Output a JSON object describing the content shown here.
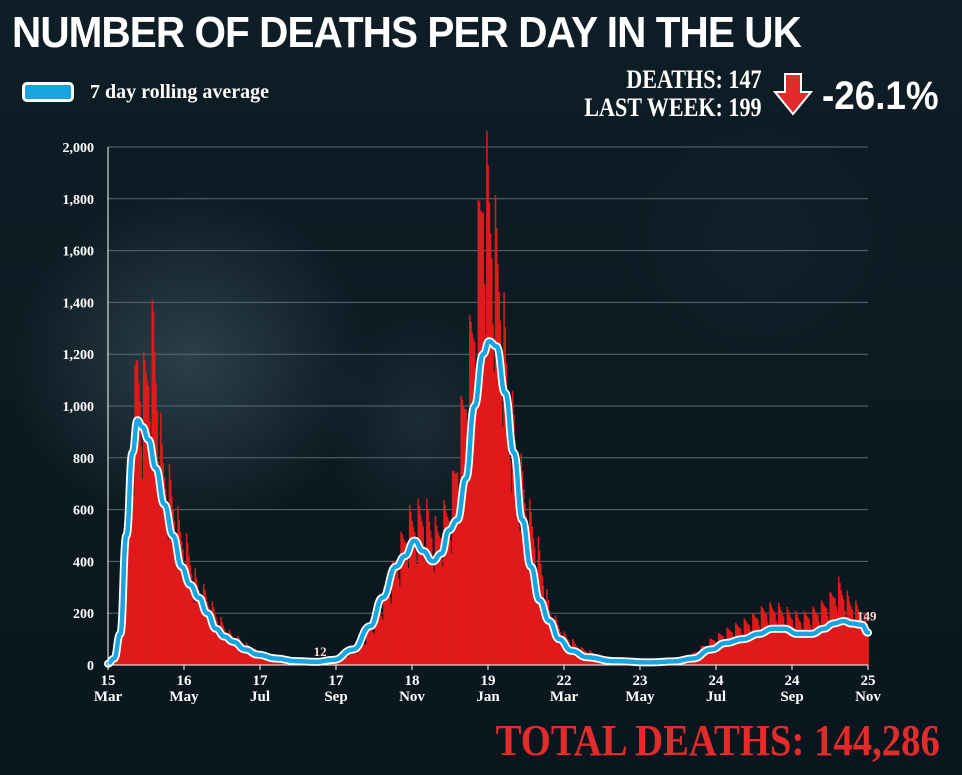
{
  "header": {
    "title": "NUMBER OF DEATHS PER DAY IN THE UK"
  },
  "legend": {
    "label": "7 day rolling average",
    "color": "#19a6e0"
  },
  "stats": {
    "deaths_label": "DEATHS: 147",
    "last_week_label": "LAST WEEK: 199",
    "change": "-26.1%",
    "arrow_icon": "down-arrow-icon",
    "arrow_color": "#e32b2b"
  },
  "footer": {
    "total": "TOTAL DEATHS: 144,286"
  },
  "chart_data": {
    "type": "bar",
    "title": "NUMBER OF DEATHS PER DAY IN THE UK",
    "ylim": [
      0,
      2000
    ],
    "yticks": [
      "0",
      "200",
      "400",
      "600",
      "800",
      "1,000",
      "1,200",
      "1,400",
      "1,600",
      "1,800",
      "2,000"
    ],
    "grid": true,
    "legend_position": "top-left",
    "x_range": [
      "2020-03-15",
      "2021-11-25"
    ],
    "xticks": [
      {
        "day": "15",
        "month": "Mar"
      },
      {
        "day": "16",
        "month": "May"
      },
      {
        "day": "17",
        "month": "Jul"
      },
      {
        "day": "17",
        "month": "Sep"
      },
      {
        "day": "18",
        "month": "Nov"
      },
      {
        "day": "19",
        "month": "Jan"
      },
      {
        "day": "22",
        "month": "Mar"
      },
      {
        "day": "23",
        "month": "May"
      },
      {
        "day": "24",
        "month": "Jul"
      },
      {
        "day": "24",
        "month": "Sep"
      },
      {
        "day": "25",
        "month": "Nov"
      }
    ],
    "colors": {
      "bars": "#e01a1a",
      "line": "#19a6e0",
      "line_outline": "#ffffff",
      "grid": "#5a6a72"
    },
    "series": [
      {
        "name": "Deaths per day",
        "kind": "bar",
        "keypoints": [
          [
            "2020-03-15",
            5
          ],
          [
            "2020-03-25",
            80
          ],
          [
            "2020-04-02",
            700
          ],
          [
            "2020-04-08",
            1120
          ],
          [
            "2020-04-12",
            1000
          ],
          [
            "2020-04-21",
            1220
          ],
          [
            "2020-04-28",
            760
          ],
          [
            "2020-05-05",
            640
          ],
          [
            "2020-05-12",
            500
          ],
          [
            "2020-05-19",
            420
          ],
          [
            "2020-05-26",
            300
          ],
          [
            "2020-06-02",
            260
          ],
          [
            "2020-06-09",
            200
          ],
          [
            "2020-06-16",
            150
          ],
          [
            "2020-06-23",
            110
          ],
          [
            "2020-07-01",
            90
          ],
          [
            "2020-07-10",
            60
          ],
          [
            "2020-07-20",
            40
          ],
          [
            "2020-08-01",
            30
          ],
          [
            "2020-08-20",
            14
          ],
          [
            "2020-09-05",
            12
          ],
          [
            "2020-09-20",
            25
          ],
          [
            "2020-10-05",
            60
          ],
          [
            "2020-10-20",
            180
          ],
          [
            "2020-11-05",
            380
          ],
          [
            "2020-11-15",
            520
          ],
          [
            "2020-11-28",
            560
          ],
          [
            "2020-12-08",
            480
          ],
          [
            "2020-12-20",
            600
          ],
          [
            "2020-12-30",
            950
          ],
          [
            "2021-01-08",
            1300
          ],
          [
            "2021-01-15",
            1820
          ],
          [
            "2021-01-20",
            1700
          ],
          [
            "2021-01-28",
            1440
          ],
          [
            "2021-02-05",
            1000
          ],
          [
            "2021-02-12",
            760
          ],
          [
            "2021-02-20",
            580
          ],
          [
            "2021-03-01",
            420
          ],
          [
            "2021-03-10",
            200
          ],
          [
            "2021-03-22",
            110
          ],
          [
            "2021-04-05",
            60
          ],
          [
            "2021-04-20",
            35
          ],
          [
            "2021-05-10",
            15
          ],
          [
            "2021-06-01",
            12
          ],
          [
            "2021-06-20",
            20
          ],
          [
            "2021-07-05",
            40
          ],
          [
            "2021-07-20",
            90
          ],
          [
            "2021-08-05",
            130
          ],
          [
            "2021-08-20",
            160
          ],
          [
            "2021-09-01",
            200
          ],
          [
            "2021-09-10",
            210
          ],
          [
            "2021-09-20",
            190
          ],
          [
            "2021-10-01",
            170
          ],
          [
            "2021-10-15",
            200
          ],
          [
            "2021-10-25",
            240
          ],
          [
            "2021-11-01",
            290
          ],
          [
            "2021-11-10",
            230
          ],
          [
            "2021-11-18",
            200
          ],
          [
            "2021-11-25",
            147
          ]
        ]
      },
      {
        "name": "7 day rolling average",
        "kind": "line",
        "points": [
          [
            "2020-03-15",
            5
          ],
          [
            "2020-03-20",
            25
          ],
          [
            "2020-03-25",
            120
          ],
          [
            "2020-03-30",
            500
          ],
          [
            "2020-04-04",
            820
          ],
          [
            "2020-04-08",
            945
          ],
          [
            "2020-04-12",
            920
          ],
          [
            "2020-04-17",
            870
          ],
          [
            "2020-04-23",
            760
          ],
          [
            "2020-04-30",
            620
          ],
          [
            "2020-05-07",
            500
          ],
          [
            "2020-05-14",
            380
          ],
          [
            "2020-05-21",
            310
          ],
          [
            "2020-05-28",
            260
          ],
          [
            "2020-06-04",
            200
          ],
          [
            "2020-06-11",
            140
          ],
          [
            "2020-06-18",
            110
          ],
          [
            "2020-06-25",
            90
          ],
          [
            "2020-07-05",
            60
          ],
          [
            "2020-07-15",
            40
          ],
          [
            "2020-07-30",
            25
          ],
          [
            "2020-08-15",
            15
          ],
          [
            "2020-09-01",
            12
          ],
          [
            "2020-09-15",
            20
          ],
          [
            "2020-10-01",
            60
          ],
          [
            "2020-10-15",
            150
          ],
          [
            "2020-10-25",
            260
          ],
          [
            "2020-11-05",
            380
          ],
          [
            "2020-11-12",
            420
          ],
          [
            "2020-11-20",
            480
          ],
          [
            "2020-11-27",
            440
          ],
          [
            "2020-12-05",
            400
          ],
          [
            "2020-12-12",
            430
          ],
          [
            "2020-12-18",
            520
          ],
          [
            "2020-12-25",
            560
          ],
          [
            "2021-01-01",
            720
          ],
          [
            "2021-01-08",
            1000
          ],
          [
            "2021-01-15",
            1200
          ],
          [
            "2021-01-20",
            1250
          ],
          [
            "2021-01-26",
            1230
          ],
          [
            "2021-02-02",
            1050
          ],
          [
            "2021-02-09",
            820
          ],
          [
            "2021-02-16",
            560
          ],
          [
            "2021-02-23",
            380
          ],
          [
            "2021-03-02",
            250
          ],
          [
            "2021-03-10",
            170
          ],
          [
            "2021-03-18",
            100
          ],
          [
            "2021-03-28",
            55
          ],
          [
            "2021-04-10",
            30
          ],
          [
            "2021-05-01",
            15
          ],
          [
            "2021-06-01",
            10
          ],
          [
            "2021-06-20",
            14
          ],
          [
            "2021-07-05",
            25
          ],
          [
            "2021-07-20",
            60
          ],
          [
            "2021-08-01",
            85
          ],
          [
            "2021-08-15",
            100
          ],
          [
            "2021-08-28",
            120
          ],
          [
            "2021-09-08",
            140
          ],
          [
            "2021-09-18",
            140
          ],
          [
            "2021-09-28",
            120
          ],
          [
            "2021-10-10",
            120
          ],
          [
            "2021-10-20",
            140
          ],
          [
            "2021-10-28",
            160
          ],
          [
            "2021-11-05",
            170
          ],
          [
            "2021-11-12",
            160
          ],
          [
            "2021-11-20",
            155
          ],
          [
            "2021-11-25",
            125
          ]
        ]
      }
    ],
    "annotations": [
      {
        "date": "2020-09-04",
        "value": 12,
        "label": "12"
      },
      {
        "date": "2021-11-24",
        "value": 149,
        "label": "149"
      }
    ]
  }
}
